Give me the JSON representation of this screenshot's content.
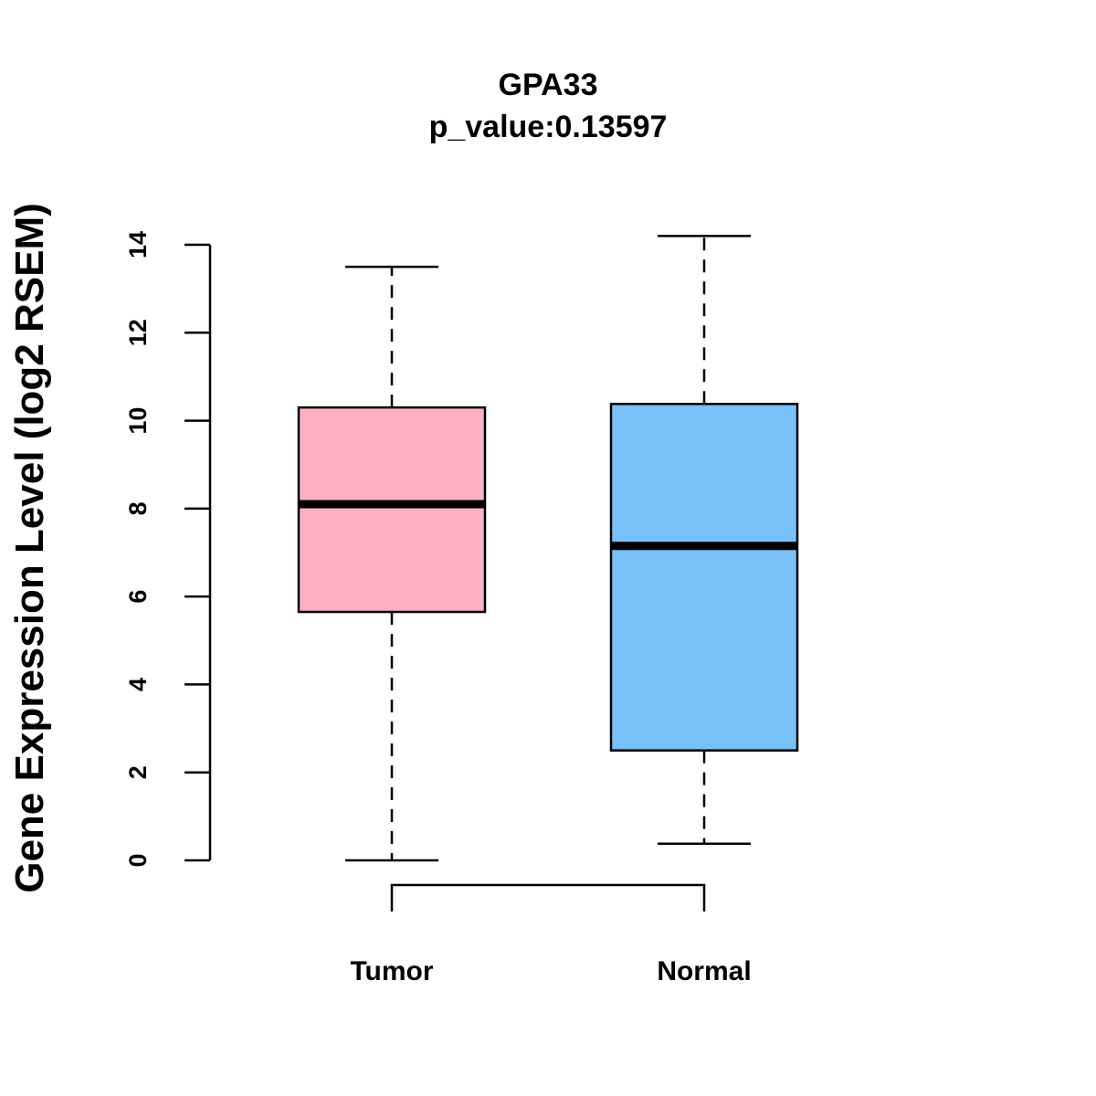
{
  "chart_data": {
    "type": "boxplot",
    "title": "GPA33",
    "subtitle": "p_value:0.13597",
    "xlabel": "",
    "ylabel": "Gene Expression Level (log2 RSEM)",
    "ylim": [
      0,
      14
    ],
    "yticks": [
      "0",
      "2",
      "4",
      "6",
      "8",
      "10",
      "12",
      "14"
    ],
    "categories": [
      "Tumor",
      "Normal"
    ],
    "boxes": [
      {
        "name": "Tumor",
        "whisker_low": 0.0,
        "q1": 5.65,
        "median": 8.1,
        "q3": 10.3,
        "whisker_high": 13.5,
        "color": "#FBB1C3"
      },
      {
        "name": "Normal",
        "whisker_low": 0.38,
        "q1": 2.5,
        "median": 7.15,
        "q3": 10.38,
        "whisker_high": 14.2,
        "color": "#77C1F8"
      }
    ],
    "comparison_bracket": [
      "Tumor",
      "Normal"
    ],
    "grid": false
  }
}
